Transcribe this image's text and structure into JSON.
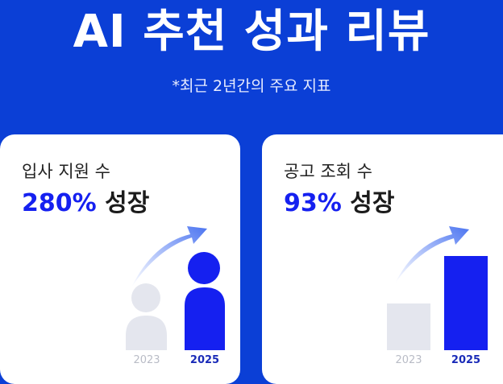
{
  "header": {
    "title": "AI 추천 성과 리뷰",
    "subtitle": "*최근 2년간의 주요 지표"
  },
  "colors": {
    "background": "#0b3fd6",
    "accent": "#1520f0",
    "muted": "#e4e6ee"
  },
  "cards": [
    {
      "label": "입사 지원 수",
      "growth_value": "280%",
      "growth_word": "성장",
      "years": [
        "2023",
        "2025"
      ],
      "icon": "person-icon"
    },
    {
      "label": "공고 조회 수",
      "growth_value": "93%",
      "growth_word": "성장",
      "years": [
        "2023",
        "2025"
      ],
      "icon": "bar-icon"
    }
  ]
}
